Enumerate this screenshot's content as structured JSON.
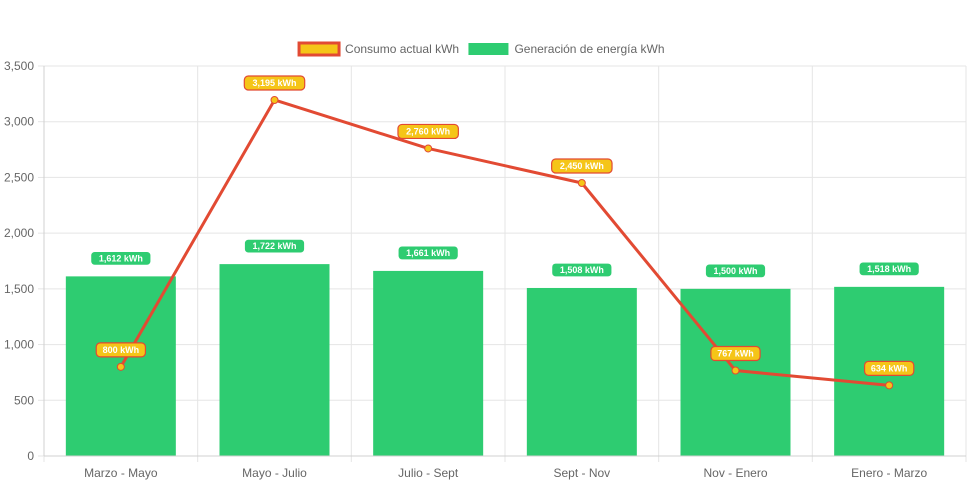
{
  "chart_data": {
    "type": "bar",
    "categories": [
      "Marzo - Mayo",
      "Mayo - Julio",
      "Julio - Sept",
      "Sept - Nov",
      "Nov - Enero",
      "Enero - Marzo"
    ],
    "series": [
      {
        "name": "Consumo actual kWh",
        "type": "line",
        "values": [
          800,
          3195,
          2760,
          2450,
          767,
          634
        ],
        "labels": [
          "800 kWh",
          "3,195 kWh",
          "2,760 kWh",
          "2,450 kWh",
          "767 kWh",
          "634 kWh"
        ],
        "line_color": "#e24a33",
        "fill_color": "#f5c518"
      },
      {
        "name": "Generación de energía kWh",
        "type": "bar",
        "values": [
          1612,
          1722,
          1661,
          1508,
          1500,
          1518
        ],
        "labels": [
          "1,612 kWh",
          "1,722 kWh",
          "1,661 kWh",
          "1,508 kWh",
          "1,500 kWh",
          "1,518 kWh"
        ],
        "color": "#2ecc71"
      }
    ],
    "y_ticks": [
      "0",
      "500",
      "1,000",
      "1,500",
      "2,000",
      "2,500",
      "3,000",
      "3,500"
    ],
    "ylim": [
      0,
      3500
    ],
    "grid": true,
    "legend_position": "top-center"
  }
}
